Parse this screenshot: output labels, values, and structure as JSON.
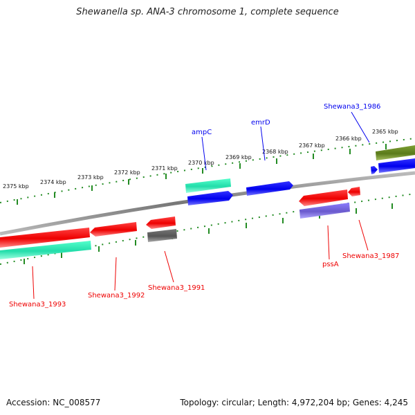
{
  "title": "Shewanella sp. ANA-3 chromosome 1, complete sequence",
  "footer": {
    "accession": "Accession: NC_008577",
    "topology": "Topology: circular; Length: 4,972,204 bp; Genes: 4,245"
  },
  "colors": {
    "forward_cds": "#0000ee",
    "reverse_cds": "#ee0000",
    "rna": "#22ddaa",
    "other_forward": "#6b8e23",
    "other_reverse": "#666666",
    "misc": "#7b68ee",
    "backbone": "#888888",
    "ticks": "#228b22"
  },
  "ticks": [
    {
      "label": "2375 kbp"
    },
    {
      "label": "2374 kbp"
    },
    {
      "label": "2373 kbp"
    },
    {
      "label": "2372 kbp"
    },
    {
      "label": "2371 kbp"
    },
    {
      "label": "2370 kbp"
    },
    {
      "label": "2369 kbp"
    },
    {
      "label": "2368 kbp"
    },
    {
      "label": "2367 kbp"
    },
    {
      "label": "2366 kbp"
    },
    {
      "label": "2365 kbp"
    }
  ],
  "labels": [
    {
      "text": "ampC"
    },
    {
      "text": "emrD"
    },
    {
      "text": "Shewana3_1986"
    },
    {
      "text": "Shewana3_1993"
    },
    {
      "text": "Shewana3_1992"
    },
    {
      "text": "Shewana3_1991"
    },
    {
      "text": "pssA"
    },
    {
      "text": "Shewana3_1987"
    }
  ]
}
